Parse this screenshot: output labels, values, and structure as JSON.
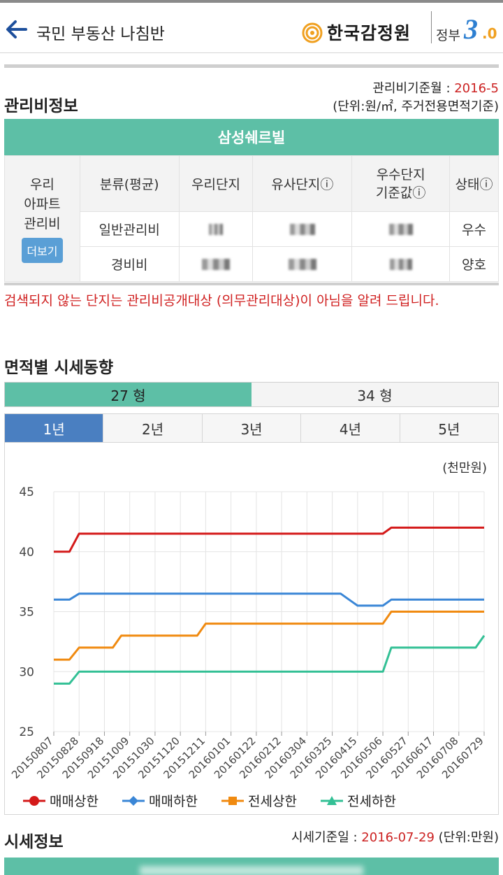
{
  "header": {
    "title": "국민 부동산 나침반",
    "org_name": "한국감정원",
    "gov_label": "정부",
    "gov_version_major": "3",
    "gov_version_minor": ".0",
    "colors": {
      "brand_orange": "#f0a020",
      "brand_blue": "#2d7fd1"
    }
  },
  "fees": {
    "section_title": "관리비정보",
    "basis_label": "관리비기준월 : ",
    "basis_month": "2016-5",
    "unit_note": "(단위:원/㎡, 주거전용면적기준)",
    "apartment_name": "삼성쉐르빌",
    "row_group_label_lines": [
      "우리",
      "아파트",
      "관리비"
    ],
    "more_button": "더보기",
    "columns": [
      "분류(평균)",
      "우리단지",
      "유사단지ⓘ",
      "우수단지\n기준값ⓘ",
      "상태ⓘ"
    ],
    "rows": [
      {
        "category": "일반관리비",
        "status": "우수"
      },
      {
        "category": "경비비",
        "status": "양호"
      }
    ],
    "notice": "검색되지 않는 단지는 관리비공개대상 (의무관리대상)이 아님을 알려 드립니다."
  },
  "trend": {
    "section_title": "면적별 시세동향",
    "size_tabs": [
      "27 형",
      "34 형"
    ],
    "active_size_tab": 0,
    "year_tabs": [
      "1년",
      "2년",
      "3년",
      "4년",
      "5년"
    ],
    "active_year_tab": 0
  },
  "chart_data": {
    "type": "line",
    "unit_label": "(천만원)",
    "ylim": [
      25,
      45
    ],
    "yticks": [
      25,
      30,
      35,
      40,
      45
    ],
    "grid": true,
    "legend_position": "bottom",
    "x": [
      "20150807",
      "20150828",
      "20150918",
      "20151009",
      "20151030",
      "20151120",
      "20151211",
      "20160101",
      "20160122",
      "20160212",
      "20160304",
      "20160325",
      "20160415",
      "20160506",
      "20160527",
      "20160617",
      "20160708",
      "20160729"
    ],
    "series": [
      {
        "name": "매매상한",
        "color": "#d41a1a",
        "marker": "circle",
        "points": [
          [
            "20150807",
            40
          ],
          [
            "20150820",
            40
          ],
          [
            "20150828",
            41.5
          ],
          [
            "20160506",
            41.5
          ],
          [
            "20160513",
            42
          ],
          [
            "20160729",
            42
          ]
        ]
      },
      {
        "name": "매매하한",
        "color": "#3a86d6",
        "marker": "diamond",
        "points": [
          [
            "20150807",
            36
          ],
          [
            "20150820",
            36
          ],
          [
            "20150828",
            36.5
          ],
          [
            "20160401",
            36.5
          ],
          [
            "20160415",
            35.5
          ],
          [
            "20160506",
            35.5
          ],
          [
            "20160513",
            36
          ],
          [
            "20160729",
            36
          ]
        ]
      },
      {
        "name": "전세상한",
        "color": "#f08a10",
        "marker": "square",
        "points": [
          [
            "20150807",
            31
          ],
          [
            "20150820",
            31
          ],
          [
            "20150828",
            32
          ],
          [
            "20150925",
            32
          ],
          [
            "20151002",
            33
          ],
          [
            "20151204",
            33
          ],
          [
            "20151211",
            34
          ],
          [
            "20160506",
            34
          ],
          [
            "20160513",
            35
          ],
          [
            "20160729",
            35
          ]
        ]
      },
      {
        "name": "전세하한",
        "color": "#33c095",
        "marker": "triangle",
        "points": [
          [
            "20150807",
            29
          ],
          [
            "20150820",
            29
          ],
          [
            "20150828",
            30
          ],
          [
            "20160506",
            30
          ],
          [
            "20160513",
            32
          ],
          [
            "20160722",
            32
          ],
          [
            "20160729",
            33
          ]
        ]
      }
    ]
  },
  "market": {
    "section_title": "시세정보",
    "basis_label": "시세기준일 : ",
    "basis_date": "2016-07-29",
    "unit_note": "(단위:만원)"
  }
}
